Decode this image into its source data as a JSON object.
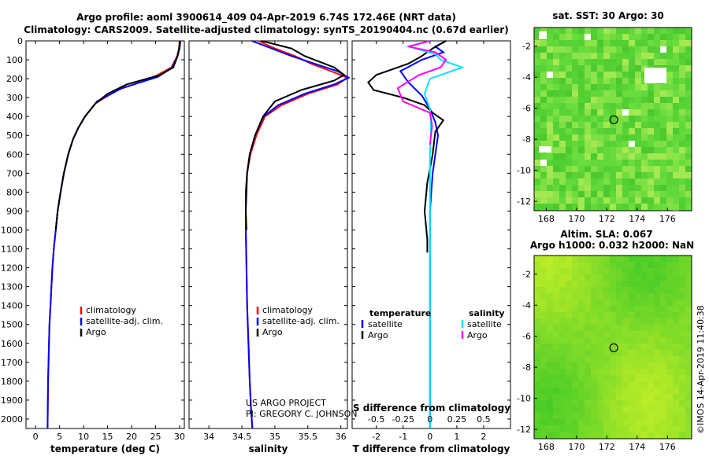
{
  "title_line1": "Argo profile: aoml 3900614_409 04-Apr-2019 6.74S 172.46E (NRT data)",
  "title_line2": "Climatology: CARS2009. Satellite-adjusted climatology: synTS_20190404.nc (0.67d earlier)",
  "map_top_title": "sat. SST: 30 Argo: 30",
  "map_bottom_title1": "Altim. SLA: 0.067",
  "map_bottom_title2": "Argo h1000: 0.032 h2000: NaN",
  "credit_project": "US ARGO PROJECT",
  "credit_pi": "PI: GREGORY C. JOHNSON",
  "timestamp": "©IMOS 14-Apr-2019 11:40:38",
  "colors": {
    "climatology": "#ff0000",
    "satellite": "#0000ff",
    "argo": "#000000",
    "sal_satellite": "#00e5ff",
    "sal_argo": "#ff00ff",
    "map_green": "#5fd63a"
  },
  "chart_data": [
    {
      "type": "line",
      "xlabel": "temperature (deg C)",
      "ylabel": "",
      "xlim": [
        -2,
        31
      ],
      "ylim": [
        2050,
        0
      ],
      "xticks": [
        "0",
        "5",
        "10",
        "15",
        "20",
        "25",
        "30"
      ],
      "yticks": [
        "0",
        "100",
        "200",
        "300",
        "400",
        "500",
        "600",
        "700",
        "800",
        "900",
        "1000",
        "1100",
        "1200",
        "1300",
        "1400",
        "1500",
        "1600",
        "1700",
        "1800",
        "1900",
        "2000"
      ],
      "legend": [
        "climatology",
        "satellite-adj. clim.",
        "Argo"
      ],
      "series": [
        {
          "name": "climatology",
          "x": [
            30.0,
            29.9,
            29.5,
            28.3,
            24.0,
            17.0,
            12.5,
            10.3,
            8.9,
            7.8,
            6.8,
            5.9,
            5.2,
            4.6,
            4.2,
            3.8,
            3.5,
            3.3,
            3.1,
            2.9,
            2.8,
            2.7,
            2.6,
            2.5
          ],
          "y": [
            0,
            40,
            80,
            140,
            200,
            260,
            330,
            400,
            460,
            520,
            600,
            700,
            800,
            900,
            1000,
            1100,
            1200,
            1300,
            1400,
            1500,
            1600,
            1700,
            1800,
            2050
          ]
        },
        {
          "name": "satellite-adj. clim.",
          "x": [
            30.2,
            30.0,
            29.6,
            28.5,
            25.5,
            18.0,
            12.8,
            10.3,
            8.9,
            7.8,
            6.8,
            5.9,
            5.2,
            4.6,
            4.2,
            3.8,
            3.5,
            3.3,
            3.1,
            2.9,
            2.8,
            2.7,
            2.6,
            2.5
          ],
          "y": [
            0,
            40,
            80,
            140,
            190,
            250,
            320,
            400,
            460,
            520,
            600,
            700,
            800,
            900,
            1000,
            1100,
            1200,
            1300,
            1400,
            1500,
            1600,
            1700,
            1800,
            2050
          ]
        },
        {
          "name": "Argo",
          "x": [
            30.1,
            29.9,
            29.6,
            28.7,
            26.0,
            19.0,
            15.0,
            12.5,
            10.3,
            8.9,
            7.8,
            6.8,
            5.9,
            5.2,
            4.6,
            4.2
          ],
          "y": [
            0,
            40,
            80,
            140,
            180,
            230,
            280,
            330,
            400,
            460,
            520,
            600,
            700,
            800,
            900,
            1000
          ]
        }
      ]
    },
    {
      "type": "line",
      "xlabel": "salinity",
      "xlim": [
        33.7,
        36.1
      ],
      "ylim": [
        2050,
        0
      ],
      "xticks": [
        "34",
        "34.5",
        "35",
        "35.5",
        "36"
      ],
      "legend": [
        "climatology",
        "satellite-adj. clim.",
        "Argo"
      ],
      "series": [
        {
          "name": "climatology",
          "x": [
            34.75,
            35.0,
            35.3,
            35.55,
            35.85,
            36.1,
            35.95,
            35.5,
            35.1,
            34.85,
            34.72,
            34.63,
            34.58,
            34.56,
            34.56,
            34.57,
            34.58,
            34.6,
            34.62,
            34.64,
            34.66
          ],
          "y": [
            0,
            40,
            80,
            120,
            160,
            195,
            230,
            280,
            340,
            400,
            500,
            600,
            700,
            800,
            1000,
            1200,
            1400,
            1600,
            1800,
            1950,
            2050
          ]
        },
        {
          "name": "satellite-adj. clim.",
          "x": [
            34.65,
            34.95,
            35.25,
            35.6,
            35.95,
            36.12,
            35.9,
            35.45,
            35.05,
            34.83,
            34.7,
            34.62,
            34.58,
            34.56,
            34.56,
            34.57,
            34.58,
            34.6,
            34.62,
            34.64,
            34.66
          ],
          "y": [
            0,
            40,
            80,
            120,
            160,
            195,
            230,
            280,
            340,
            400,
            500,
            600,
            700,
            800,
            1000,
            1200,
            1400,
            1600,
            1800,
            1950,
            2050
          ]
        },
        {
          "name": "Argo",
          "x": [
            34.8,
            35.25,
            35.45,
            35.9,
            36.05,
            35.9,
            35.4,
            35.0,
            34.82,
            34.7,
            34.62,
            34.58,
            34.57,
            34.56,
            34.57
          ],
          "y": [
            0,
            40,
            80,
            140,
            180,
            210,
            260,
            320,
            400,
            500,
            600,
            700,
            800,
            900,
            1000
          ]
        }
      ]
    },
    {
      "type": "line",
      "xlabel": "T difference from climatology",
      "x2label": "S difference from climatology",
      "xlim": [
        -2.9,
        3.0
      ],
      "ylim": [
        2050,
        0
      ],
      "xticks": [
        "-2",
        "-1",
        "0",
        "1",
        "2"
      ],
      "x2lim": [
        -0.725,
        0.75
      ],
      "x2ticks": [
        "-0.5",
        "-0.25",
        "0",
        "0.25",
        "0.5"
      ],
      "legend_temperature": [
        "temperature",
        "satellite",
        "Argo"
      ],
      "legend_salinity": [
        "salinity",
        "satellite",
        "Argo"
      ],
      "series": [
        {
          "name": "satellite",
          "axis": "T",
          "x": [
            0.6,
            0.2,
            0.5,
            -0.3,
            -1.1,
            -0.8,
            -0.3,
            0.0,
            0.2,
            0.3,
            0.2,
            0.1,
            0.05,
            0.0,
            0.0,
            0.0
          ],
          "y": [
            0,
            30,
            60,
            100,
            160,
            220,
            290,
            360,
            430,
            500,
            600,
            700,
            800,
            900,
            1000,
            2050
          ]
        },
        {
          "name": "Argo",
          "axis": "T",
          "x": [
            0.6,
            0.1,
            -0.3,
            -0.8,
            -2.0,
            -2.3,
            -2.1,
            -1.0,
            -0.2,
            0.1,
            0.5,
            0.2,
            0.1,
            -0.1,
            -0.2,
            -0.1,
            -0.1
          ],
          "y": [
            0,
            40,
            80,
            120,
            180,
            220,
            260,
            300,
            340,
            380,
            420,
            480,
            600,
            750,
            900,
            1050,
            1120
          ]
        },
        {
          "name": "satellite",
          "axis": "S",
          "x": [
            0.0,
            -0.2,
            0.05,
            0.1,
            0.3,
            0.0,
            -0.05,
            0.0,
            0.01,
            0.0,
            0.0,
            0.0,
            0.0
          ],
          "y": [
            0,
            30,
            70,
            100,
            140,
            200,
            280,
            360,
            450,
            600,
            900,
            1500,
            2050
          ]
        },
        {
          "name": "Argo",
          "axis": "S",
          "x": [
            0.0,
            -0.2,
            0.05,
            0.15,
            0.1,
            -0.1,
            -0.3,
            -0.25,
            0.0,
            0.02,
            0.0
          ],
          "y": [
            0,
            30,
            60,
            100,
            140,
            180,
            250,
            320,
            380,
            450,
            550
          ]
        }
      ]
    },
    {
      "type": "heatmap",
      "title": "sat. SST: 30 Argo: 30",
      "xlim": [
        167.2,
        177.6
      ],
      "ylim": [
        -12.6,
        -0.8
      ],
      "xticks": [
        "168",
        "170",
        "172",
        "174",
        "176"
      ],
      "yticks": [
        "-2",
        "-4",
        "-6",
        "-8",
        "-10",
        "-12"
      ],
      "argo_marker": {
        "lon": 172.46,
        "lat": -6.74
      }
    },
    {
      "type": "heatmap",
      "title": "Altim. SLA: 0.067",
      "subtitle": "Argo h1000: 0.032 h2000: NaN",
      "xlim": [
        167.2,
        177.6
      ],
      "ylim": [
        -12.6,
        -0.8
      ],
      "xticks": [
        "168",
        "170",
        "172",
        "174",
        "176"
      ],
      "yticks": [
        "-2",
        "-4",
        "-6",
        "-8",
        "-10",
        "-12"
      ],
      "argo_marker": {
        "lon": 172.46,
        "lat": -6.74
      }
    }
  ]
}
